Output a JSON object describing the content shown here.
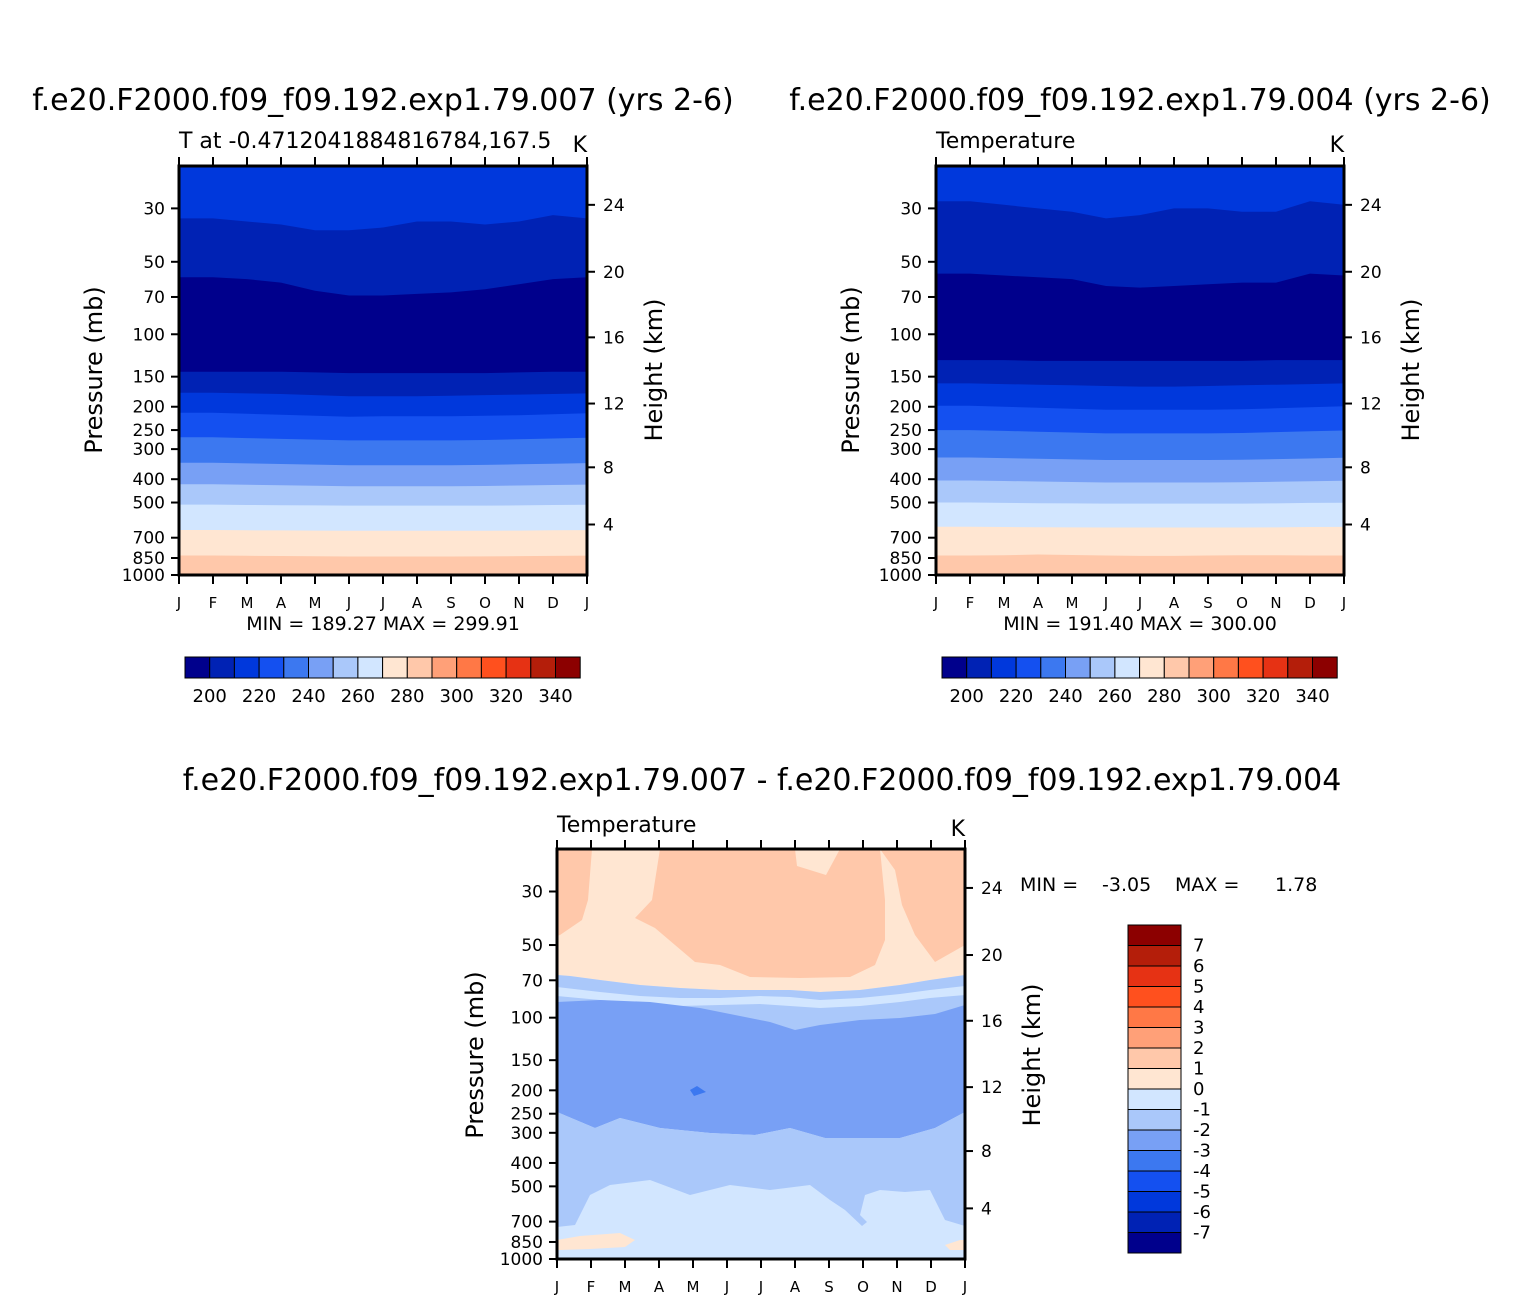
{
  "chart_data": [
    {
      "type": "heatmap",
      "title": "f.e20.F2000.f09_f09.192.exp1.79.007 (yrs 2-6)",
      "subtitle_left": "T at -0.4712041884816784,167.5",
      "subtitle_right": "K",
      "ylabel": "Pressure (mb)",
      "ylabel_right": "Height (km)",
      "x_ticks": [
        "J",
        "F",
        "M",
        "A",
        "M",
        "J",
        "J",
        "A",
        "S",
        "O",
        "N",
        "D",
        "J"
      ],
      "y_ticks": [
        "30",
        "50",
        "70",
        "100",
        "150",
        "200",
        "250",
        "300",
        "400",
        "500",
        "700",
        "850",
        "1000"
      ],
      "y_ticks_right": [
        "24",
        "20",
        "16",
        "12",
        "8",
        "4"
      ],
      "stats": "MIN = 189.27 MAX = 299.91",
      "min": 189.27,
      "max": 299.91,
      "colorbar_labels": [
        "200",
        "220",
        "240",
        "260",
        "280",
        "300",
        "320",
        "340"
      ],
      "contour_levels": [
        190,
        200,
        210,
        220,
        230,
        240,
        250,
        260,
        270,
        280,
        290,
        300,
        310,
        320,
        330,
        340,
        350
      ],
      "band_colors": [
        "#00008C",
        "#0022B4",
        "#0038DC",
        "#1450F0",
        "#3C78F0",
        "#78A0F5",
        "#AAC8FA",
        "#D2E6FF",
        "#FFE6D2",
        "#FFC8AA",
        "#FFA078",
        "#FF7846",
        "#FF501E",
        "#E63214",
        "#B41E0A",
        "#8C0000"
      ],
      "layers_pressure_mb": [
        {
          "level_K": 220,
          "edge": [
            33,
            33,
            34,
            35,
            37,
            37,
            36,
            34,
            34,
            35,
            34,
            32,
            33
          ]
        },
        {
          "level_K": 210,
          "edge": [
            58,
            58,
            59,
            61,
            66,
            69,
            69,
            68,
            67,
            65,
            62,
            59,
            58
          ]
        },
        {
          "level_K": 200,
          "edge": [
            143,
            143,
            143,
            143,
            144,
            145,
            145,
            145,
            145,
            145,
            144,
            143,
            143
          ]
        },
        {
          "level_K": 210,
          "edge": [
            175,
            175,
            176,
            177,
            179,
            181,
            181,
            181,
            180,
            179,
            178,
            177,
            176
          ]
        },
        {
          "level_K": 220,
          "edge": [
            212,
            212,
            214,
            216,
            218,
            220,
            219,
            219,
            219,
            218,
            217,
            215,
            213
          ]
        },
        {
          "level_K": 230,
          "edge": [
            268,
            268,
            270,
            272,
            274,
            276,
            276,
            276,
            276,
            275,
            273,
            271,
            269
          ]
        },
        {
          "level_K": 240,
          "edge": [
            342,
            342,
            344,
            346,
            348,
            350,
            350,
            350,
            350,
            349,
            347,
            345,
            343
          ]
        },
        {
          "level_K": 250,
          "edge": [
            420,
            420,
            422,
            424,
            426,
            428,
            428,
            428,
            428,
            427,
            425,
            423,
            421
          ]
        },
        {
          "level_K": 260,
          "edge": [
            510,
            510,
            512,
            513,
            514,
            515,
            515,
            515,
            515,
            515,
            514,
            512,
            511
          ]
        },
        {
          "level_K": 270,
          "edge": [
            650,
            650,
            652,
            653,
            654,
            655,
            655,
            655,
            655,
            655,
            654,
            652,
            651
          ]
        },
        {
          "level_K": 280,
          "edge": [
            830,
            830,
            832,
            834,
            836,
            838,
            838,
            838,
            838,
            837,
            835,
            833,
            831
          ]
        },
        {
          "level_K": 290,
          "edge": [
            995,
            995,
            995,
            995,
            995,
            995,
            995,
            995,
            995,
            995,
            995,
            995,
            995
          ]
        }
      ]
    },
    {
      "type": "heatmap",
      "title": "f.e20.F2000.f09_f09.192.exp1.79.004 (yrs 2-6)",
      "subtitle_left": "Temperature",
      "subtitle_right": "K",
      "ylabel": "Pressure (mb)",
      "ylabel_right": "Height (km)",
      "x_ticks": [
        "J",
        "F",
        "M",
        "A",
        "M",
        "J",
        "J",
        "A",
        "S",
        "O",
        "N",
        "D",
        "J"
      ],
      "y_ticks": [
        "30",
        "50",
        "70",
        "100",
        "150",
        "200",
        "250",
        "300",
        "400",
        "500",
        "700",
        "850",
        "1000"
      ],
      "y_ticks_right": [
        "24",
        "20",
        "16",
        "12",
        "8",
        "4"
      ],
      "stats": "MIN = 191.40 MAX = 300.00",
      "min": 191.4,
      "max": 300.0,
      "colorbar_labels": [
        "200",
        "220",
        "240",
        "260",
        "280",
        "300",
        "320",
        "340"
      ],
      "contour_levels": [
        190,
        200,
        210,
        220,
        230,
        240,
        250,
        260,
        270,
        280,
        290,
        300,
        310,
        320,
        330,
        340,
        350
      ],
      "band_colors": [
        "#00008C",
        "#0022B4",
        "#0038DC",
        "#1450F0",
        "#3C78F0",
        "#78A0F5",
        "#AAC8FA",
        "#D2E6FF",
        "#FFE6D2",
        "#FFC8AA",
        "#FFA078",
        "#FF7846",
        "#FF501E",
        "#E63214",
        "#B41E0A",
        "#8C0000"
      ],
      "layers_pressure_mb": [
        {
          "level_K": 220,
          "edge": [
            28,
            28,
            29,
            30,
            31,
            33,
            32,
            30,
            30,
            31,
            31,
            28,
            29
          ]
        },
        {
          "level_K": 210,
          "edge": [
            56,
            56,
            57,
            58,
            59,
            63,
            64,
            63,
            62,
            61,
            61,
            56,
            57
          ]
        },
        {
          "level_K": 200,
          "edge": [
            128,
            128,
            128,
            129,
            129,
            129,
            129,
            129,
            129,
            129,
            128,
            128,
            128
          ]
        },
        {
          "level_K": 210,
          "edge": [
            160,
            160,
            161,
            162,
            163,
            164,
            165,
            165,
            164,
            163,
            162,
            161,
            160
          ]
        },
        {
          "level_K": 220,
          "edge": [
            198,
            198,
            200,
            202,
            204,
            206,
            206,
            206,
            206,
            205,
            203,
            201,
            199
          ]
        },
        {
          "level_K": 230,
          "edge": [
            250,
            250,
            252,
            254,
            256,
            258,
            258,
            258,
            258,
            257,
            255,
            253,
            251
          ]
        },
        {
          "level_K": 240,
          "edge": [
            325,
            325,
            327,
            329,
            331,
            333,
            333,
            333,
            333,
            332,
            330,
            328,
            326
          ]
        },
        {
          "level_K": 250,
          "edge": [
            405,
            405,
            407,
            409,
            411,
            413,
            413,
            413,
            413,
            412,
            410,
            408,
            406
          ]
        },
        {
          "level_K": 260,
          "edge": [
            500,
            500,
            502,
            503,
            504,
            505,
            505,
            505,
            505,
            505,
            504,
            502,
            501
          ]
        },
        {
          "level_K": 270,
          "edge": [
            630,
            630,
            632,
            633,
            634,
            635,
            635,
            635,
            635,
            635,
            634,
            632,
            631
          ]
        },
        {
          "level_K": 280,
          "edge": [
            830,
            830,
            828,
            822,
            826,
            830,
            833,
            833,
            830,
            828,
            828,
            830,
            830
          ]
        },
        {
          "level_K": 290,
          "edge": [
            990,
            990,
            990,
            990,
            990,
            990,
            990,
            990,
            990,
            990,
            990,
            990,
            990
          ]
        }
      ]
    },
    {
      "type": "heatmap",
      "title": "f.e20.F2000.f09_f09.192.exp1.79.007 - f.e20.F2000.f09_f09.192.exp1.79.004",
      "subtitle_left": "Temperature",
      "subtitle_right": "K",
      "ylabel": "Pressure (mb)",
      "ylabel_right": "Height (km)",
      "x_ticks": [
        "J",
        "F",
        "M",
        "A",
        "M",
        "J",
        "J",
        "A",
        "S",
        "O",
        "N",
        "D",
        "J"
      ],
      "y_ticks": [
        "30",
        "50",
        "70",
        "100",
        "150",
        "200",
        "250",
        "300",
        "400",
        "500",
        "700",
        "850",
        "1000"
      ],
      "y_ticks_right": [
        "24",
        "20",
        "16",
        "12",
        "8",
        "4"
      ],
      "stats_min_label": "MIN =",
      "stats_min": "-3.05",
      "stats_max_label": "MAX =",
      "stats_max": "1.78",
      "min": -3.05,
      "max": 1.78,
      "colorbar_labels": [
        "7",
        "6",
        "5",
        "4",
        "3",
        "2",
        "1",
        "0",
        "-1",
        "-2",
        "-3",
        "-4",
        "-5",
        "-6",
        "-7"
      ],
      "contour_levels": [
        -8,
        -7,
        -6,
        -5,
        -4,
        -3,
        -2,
        -1,
        0,
        1,
        2,
        3,
        4,
        5,
        6,
        7,
        8
      ],
      "band_colors": [
        "#8C0000",
        "#B41E0A",
        "#E63214",
        "#FF501E",
        "#FF7846",
        "#FFA078",
        "#FFC8AA",
        "#FFE6D2",
        "#D2E6FF",
        "#AAC8FA",
        "#78A0F5",
        "#3C78F0",
        "#1450F0",
        "#0038DC",
        "#0022B4",
        "#00008C"
      ]
    }
  ]
}
